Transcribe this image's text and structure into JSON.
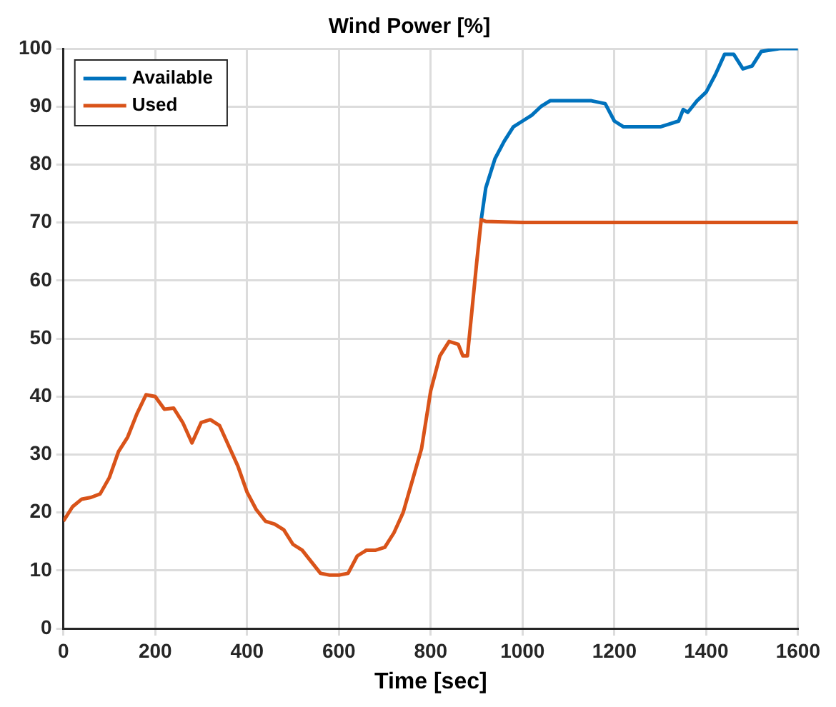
{
  "chart_data": {
    "type": "line",
    "title": "Wind Power [%]",
    "xlabel": "Time [sec]",
    "xlim": [
      0,
      1600
    ],
    "xticks": [
      0,
      200,
      400,
      600,
      800,
      1000,
      1200,
      1400,
      1600
    ],
    "ylim": [
      0,
      100
    ],
    "yticks": [
      0,
      10,
      20,
      30,
      40,
      50,
      60,
      70,
      80,
      90,
      100
    ],
    "grid": true,
    "legend": "top left",
    "marker": "none",
    "line_style": "solid",
    "series": [
      {
        "name": "Available",
        "color": "#0072bd",
        "x": [
          910,
          920,
          940,
          960,
          980,
          1000,
          1020,
          1040,
          1060,
          1100,
          1150,
          1180,
          1200,
          1220,
          1300,
          1320,
          1340,
          1350,
          1360,
          1380,
          1400,
          1420,
          1440,
          1460,
          1480,
          1500,
          1520,
          1560,
          1600
        ],
        "values": [
          70.5,
          76,
          81,
          84,
          86.5,
          87.5,
          88.5,
          90,
          91,
          91,
          91,
          90.5,
          87.5,
          86.5,
          86.5,
          87,
          87.5,
          89.5,
          89,
          91,
          92.5,
          95.5,
          99,
          99,
          96.5,
          97,
          99.5,
          100,
          100
        ]
      },
      {
        "name": "Used",
        "color": "#d95319",
        "x": [
          0,
          20,
          40,
          60,
          80,
          100,
          120,
          140,
          160,
          180,
          200,
          220,
          240,
          260,
          280,
          300,
          320,
          340,
          360,
          380,
          400,
          420,
          440,
          460,
          480,
          500,
          520,
          540,
          560,
          580,
          600,
          620,
          640,
          660,
          680,
          700,
          720,
          740,
          760,
          780,
          800,
          820,
          840,
          860,
          870,
          880,
          890,
          900,
          910,
          920,
          1000,
          1200,
          1400,
          1600
        ],
        "values": [
          18.5,
          21,
          22.3,
          22.6,
          23.2,
          26,
          30.5,
          33,
          37,
          40.3,
          40,
          37.8,
          38,
          35.5,
          32,
          35.5,
          36,
          35,
          31.5,
          28,
          23.5,
          20.5,
          18.5,
          18,
          17,
          14.5,
          13.5,
          11.5,
          9.5,
          9.2,
          9.2,
          9.5,
          12.5,
          13.5,
          13.5,
          14,
          16.5,
          20,
          25.5,
          31,
          41,
          47,
          49.5,
          49,
          47,
          47,
          55,
          63,
          70.5,
          70.2,
          70,
          70,
          70,
          70
        ]
      }
    ]
  }
}
